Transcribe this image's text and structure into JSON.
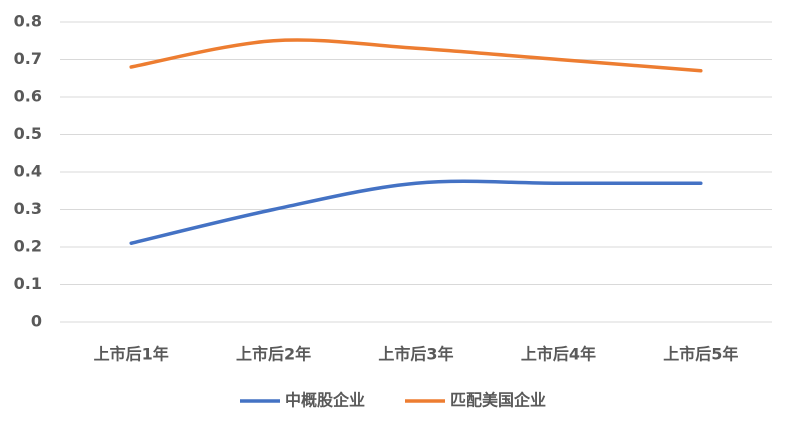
{
  "chart_data": {
    "type": "line",
    "categories": [
      "上市后1年",
      "上市后2年",
      "上市后3年",
      "上市后4年",
      "上市后5年"
    ],
    "series": [
      {
        "name": "中概股企业",
        "color": "#4472c4",
        "values": [
          0.21,
          0.3,
          0.37,
          0.37,
          0.37
        ]
      },
      {
        "name": "匹配美国企业",
        "color": "#ed7d31",
        "values": [
          0.68,
          0.75,
          0.73,
          0.7,
          0.67
        ]
      }
    ],
    "ylim": [
      0,
      0.8
    ],
    "yticks": [
      0,
      0.1,
      0.2,
      0.3,
      0.4,
      0.5,
      0.6,
      0.7,
      0.8
    ],
    "grid": true,
    "smooth": true,
    "legend": "bottom"
  }
}
